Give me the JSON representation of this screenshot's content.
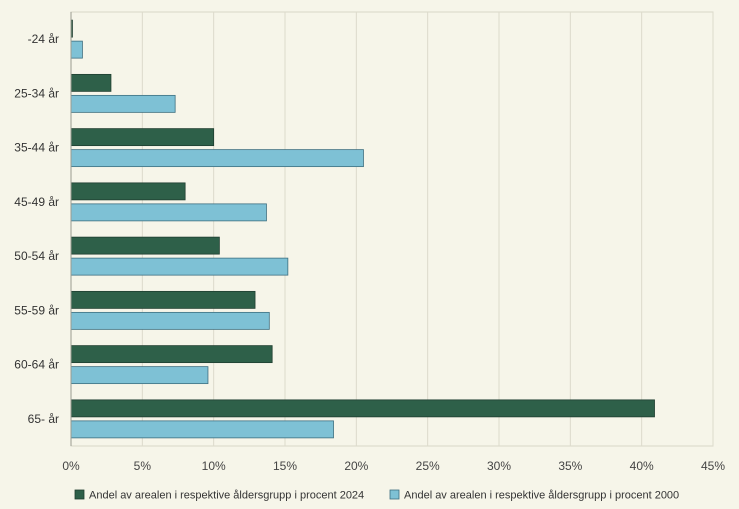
{
  "chart_data": {
    "type": "bar",
    "orientation": "horizontal",
    "categories": [
      "-24 år",
      "25-34 år",
      "35-44 år",
      "45-49 år",
      "50-54 år",
      "55-59 år",
      "60-64 år",
      "65- år"
    ],
    "series": [
      {
        "name": "Andel av arealen i respektive åldersgrupp i procent 2024",
        "color": "#2e6049",
        "values": [
          0.1,
          2.8,
          10.0,
          8.0,
          10.4,
          12.9,
          14.1,
          40.9
        ]
      },
      {
        "name": "Andel av arealen i respektive åldersgrupp i procent 2000",
        "color": "#7ec1d5",
        "values": [
          0.8,
          7.3,
          20.5,
          13.7,
          15.2,
          13.9,
          9.6,
          18.4
        ]
      }
    ],
    "x_ticks": [
      "0%",
      "5%",
      "10%",
      "15%",
      "20%",
      "25%",
      "30%",
      "35%",
      "40%",
      "45%"
    ],
    "xlim": [
      0,
      45
    ],
    "grid": true,
    "legend_position": "bottom",
    "title": "",
    "xlabel": "",
    "ylabel": ""
  }
}
